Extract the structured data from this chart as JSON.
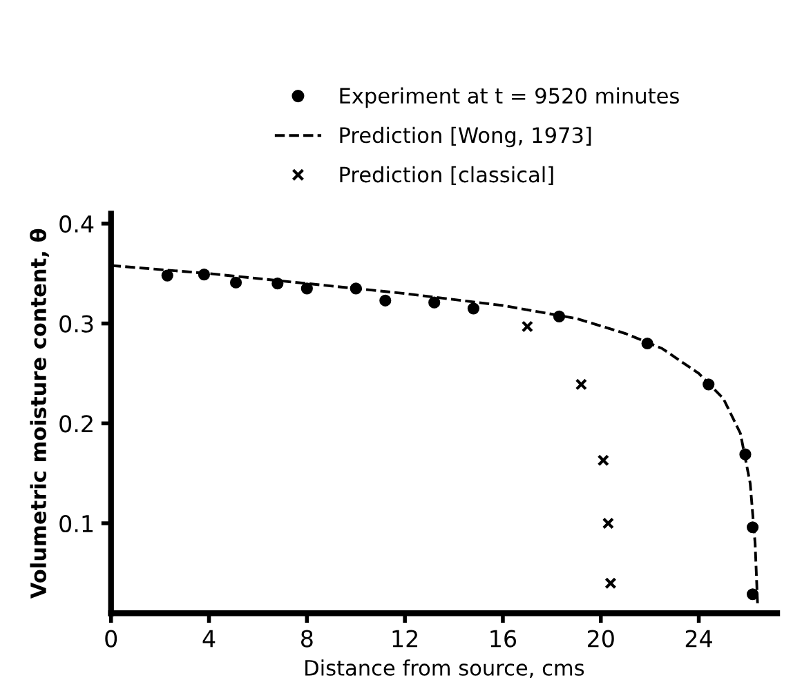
{
  "chart_data": {
    "type": "scatter",
    "xlabel": "Distance from source, cms",
    "ylabel": "Volumetric moisture content, θ",
    "xlim": [
      0,
      27.2
    ],
    "ylim": [
      0.01,
      0.41
    ],
    "xticks": [
      0,
      4,
      8,
      12,
      16,
      20,
      24
    ],
    "yticks": [
      0.1,
      0.2,
      0.3,
      0.4
    ],
    "grid": false,
    "legend": "top",
    "series": [
      {
        "name": "Experiment at t = 9520 minutes",
        "marker": "circle",
        "color": "#000000",
        "x": [
          2.3,
          3.8,
          5.1,
          6.8,
          8.0,
          10.0,
          11.2,
          13.2,
          14.8,
          18.3,
          21.9,
          24.4,
          25.9,
          26.2,
          26.2
        ],
        "values": [
          0.348,
          0.349,
          0.341,
          0.34,
          0.335,
          0.335,
          0.323,
          0.321,
          0.315,
          0.307,
          0.28,
          0.239,
          0.169,
          0.096,
          0.029
        ]
      },
      {
        "name": "Prediction [Wong, 1973]",
        "type": "line",
        "line_style": "dashed",
        "color": "#000000",
        "x": [
          0,
          4,
          8,
          12,
          16,
          19,
          21,
          22.5,
          24,
          25,
          25.7,
          26.1,
          26.3,
          26.4
        ],
        "values": [
          0.358,
          0.35,
          0.34,
          0.33,
          0.318,
          0.305,
          0.29,
          0.275,
          0.25,
          0.225,
          0.19,
          0.14,
          0.08,
          0.02
        ]
      },
      {
        "name": "Prediction [classical]",
        "marker": "cross",
        "color": "#000000",
        "x": [
          17.0,
          19.2,
          20.1,
          20.3,
          20.4
        ],
        "values": [
          0.297,
          0.239,
          0.163,
          0.1,
          0.04
        ]
      }
    ]
  }
}
